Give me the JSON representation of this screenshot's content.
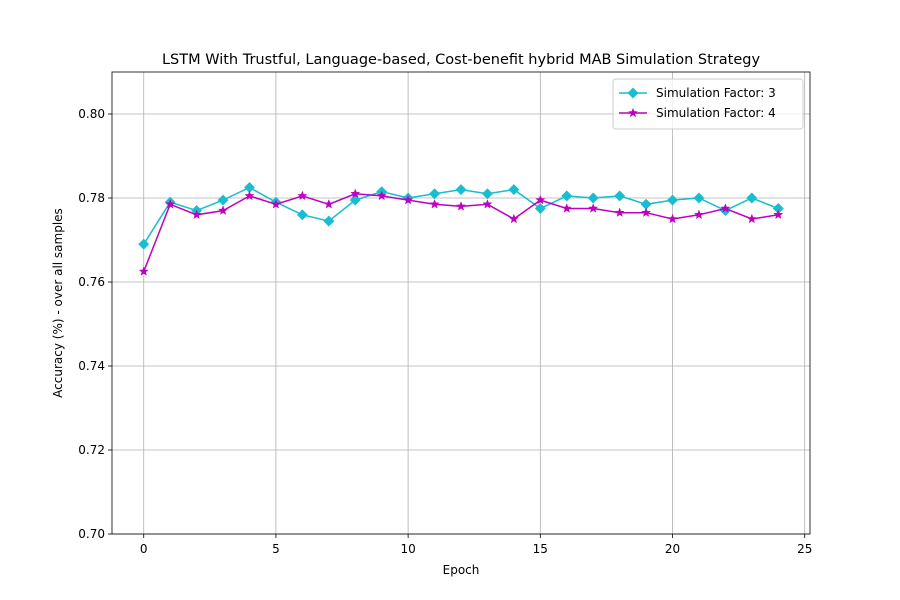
{
  "chart_data": {
    "type": "line",
    "title": "LSTM With Trustful, Language-based, Cost-benefit hybrid MAB Simulation Strategy",
    "xlabel": "Epoch",
    "ylabel": "Accuracy (%) - over all samples",
    "xlim": [
      -1.2,
      25.2
    ],
    "ylim": [
      0.7,
      0.81
    ],
    "xticks": [
      0,
      5,
      10,
      15,
      20,
      25
    ],
    "yticks": [
      0.7,
      0.72,
      0.74,
      0.76,
      0.78,
      0.8
    ],
    "xtick_labels": [
      "0",
      "5",
      "10",
      "15",
      "20",
      "25"
    ],
    "ytick_labels": [
      "0.70",
      "0.72",
      "0.74",
      "0.76",
      "0.78",
      "0.80"
    ],
    "grid": true,
    "legend_position": "top-right",
    "x": [
      0,
      1,
      2,
      3,
      4,
      5,
      6,
      7,
      8,
      9,
      10,
      11,
      12,
      13,
      14,
      15,
      16,
      17,
      18,
      19,
      20,
      21,
      22,
      23,
      24
    ],
    "series": [
      {
        "name": "Simulation Factor: 3",
        "color": "#17becf",
        "marker": "diamond",
        "values": [
          0.769,
          0.779,
          0.777,
          0.7795,
          0.7825,
          0.779,
          0.776,
          0.7745,
          0.7795,
          0.7815,
          0.78,
          0.781,
          0.782,
          0.781,
          0.782,
          0.7775,
          0.7805,
          0.78,
          0.7805,
          0.7785,
          0.7795,
          0.78,
          0.777,
          0.78,
          0.7775
        ]
      },
      {
        "name": "Simulation Factor: 4",
        "color": "#bf00bf",
        "marker": "star",
        "values": [
          0.7625,
          0.7785,
          0.776,
          0.777,
          0.7805,
          0.7785,
          0.7805,
          0.7785,
          0.781,
          0.7805,
          0.7795,
          0.7785,
          0.778,
          0.7785,
          0.775,
          0.7795,
          0.7775,
          0.7775,
          0.7765,
          0.7765,
          0.775,
          0.776,
          0.7775,
          0.775,
          0.776
        ]
      }
    ]
  }
}
